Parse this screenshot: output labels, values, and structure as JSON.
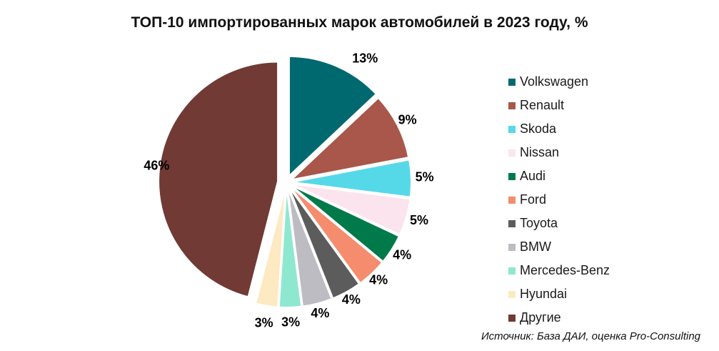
{
  "chart_data": {
    "type": "pie",
    "title": "ТОП-10 импортированных марок автомобилей в 2023 году, %",
    "source": "Источник: База ДАИ, оценка Pro-Consulting",
    "legend_position": "right",
    "slices": [
      {
        "name": "Volkswagen",
        "value": 13,
        "label": "13%",
        "color": "#00696f"
      },
      {
        "name": "Renault",
        "value": 9,
        "label": "9%",
        "color": "#a8574a"
      },
      {
        "name": "Skoda",
        "value": 5,
        "label": "5%",
        "color": "#55d9e9"
      },
      {
        "name": "Nissan",
        "value": 5,
        "label": "5%",
        "color": "#fce4ef"
      },
      {
        "name": "Audi",
        "value": 4,
        "label": "4%",
        "color": "#007a4a"
      },
      {
        "name": "Ford",
        "value": 4,
        "label": "4%",
        "color": "#f58c6e"
      },
      {
        "name": "Toyota",
        "value": 4,
        "label": "4%",
        "color": "#5c5c5c"
      },
      {
        "name": "BMW",
        "value": 4,
        "label": "4%",
        "color": "#bdbcc3"
      },
      {
        "name": "Mercedes-Benz",
        "value": 3,
        "label": "3%",
        "color": "#8ee8cf"
      },
      {
        "name": "Hyundai",
        "value": 3,
        "label": "3%",
        "color": "#fde9c2"
      },
      {
        "name": "Другие",
        "value": 46,
        "label": "46%",
        "color": "#713a35"
      }
    ]
  }
}
